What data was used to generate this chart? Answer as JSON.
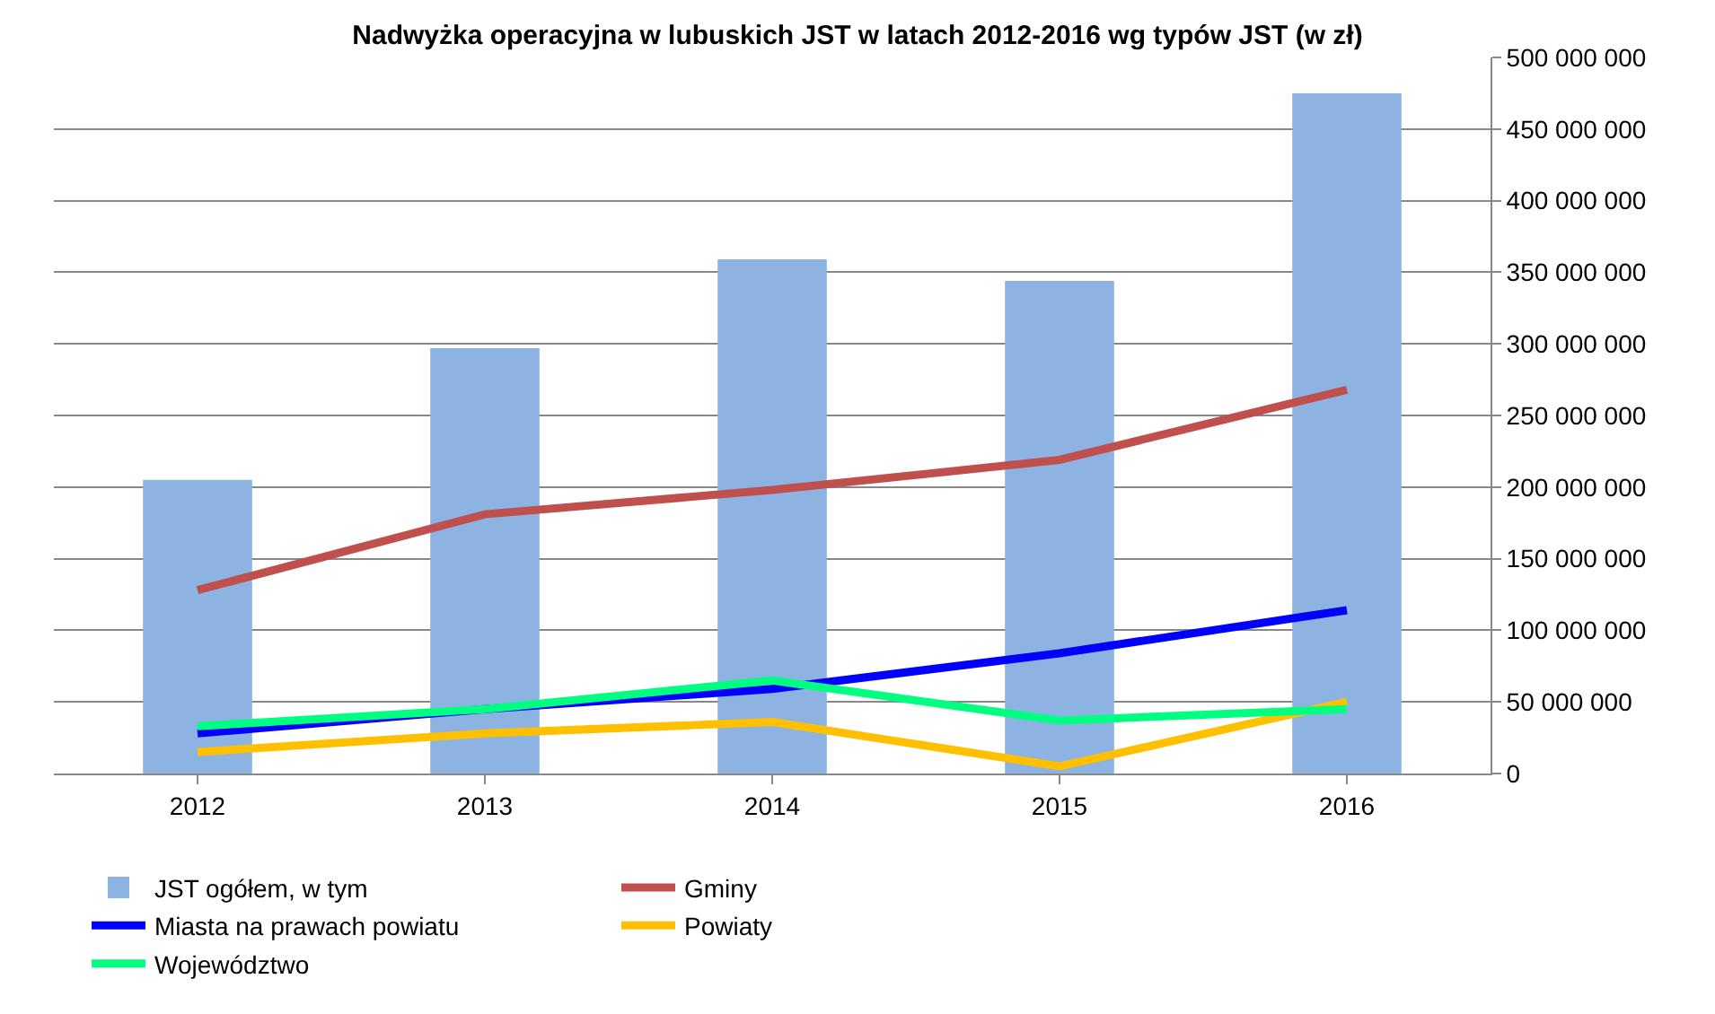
{
  "chart_data": {
    "type": "bar",
    "title": "Nadwyżka operacyjna w lubuskich JST w latach 2012-2016 wg typów JST (w zł)",
    "categories": [
      "2012",
      "2013",
      "2014",
      "2015",
      "2016"
    ],
    "series": [
      {
        "name": "JST ogółem, w tym",
        "color": "#8db3e2",
        "values": [
          205000000,
          297000000,
          359000000,
          344000000,
          475000000
        ]
      },
      {
        "name": "Gminy",
        "type": "line",
        "color": "#c0504d",
        "values": [
          128000000,
          181000000,
          198000000,
          219000000,
          268000000
        ]
      },
      {
        "name": "Miasta na prawach powiatu",
        "type": "line",
        "color": "#0000ff",
        "values": [
          28000000,
          45000000,
          59000000,
          84000000,
          114000000
        ]
      },
      {
        "name": "Powiaty",
        "type": "line",
        "color": "#ffc000",
        "values": [
          15000000,
          28000000,
          36000000,
          5000000,
          50000000
        ]
      },
      {
        "name": "Województwo",
        "type": "line",
        "color": "#00ff80",
        "values": [
          33000000,
          45000000,
          65000000,
          37000000,
          45000000
        ]
      }
    ],
    "ylim": [
      0,
      500000000
    ],
    "yticks": [
      {
        "value": 0,
        "label": "0"
      },
      {
        "value": 50000000,
        "label": "50 000 000"
      },
      {
        "value": 100000000,
        "label": "100 000 000"
      },
      {
        "value": 150000000,
        "label": "150 000 000"
      },
      {
        "value": 200000000,
        "label": "200 000 000"
      },
      {
        "value": 250000000,
        "label": "250 000 000"
      },
      {
        "value": 300000000,
        "label": "300 000 000"
      },
      {
        "value": 350000000,
        "label": "350 000 000"
      },
      {
        "value": 400000000,
        "label": "400 000 000"
      },
      {
        "value": 450000000,
        "label": "450 000 000"
      },
      {
        "value": 500000000,
        "label": "500 000 000"
      }
    ],
    "grid": "y",
    "legend": "bottom",
    "marker": "none",
    "line_style": "solid"
  }
}
